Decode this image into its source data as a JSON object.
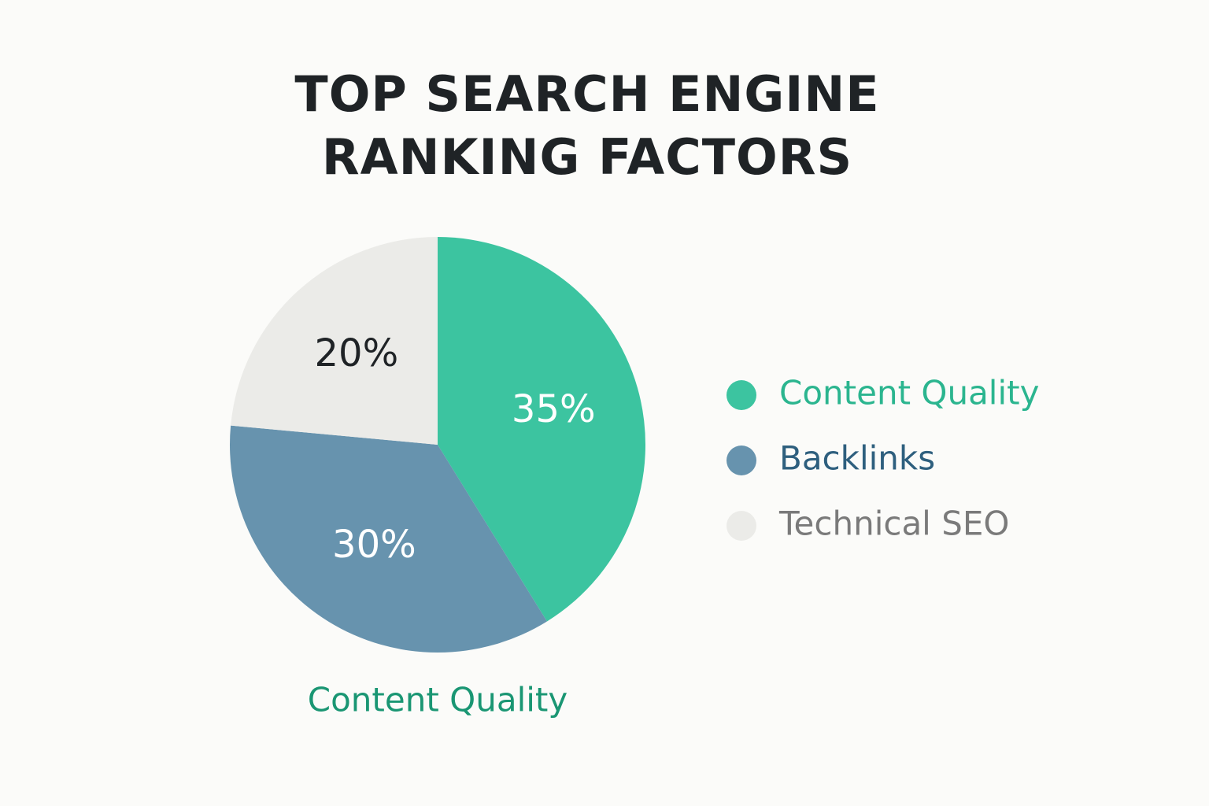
{
  "chart_data": {
    "type": "pie",
    "title": "TOP SEARCH ENGINE RANKING FACTORS",
    "categories": [
      "Content Quality",
      "Backlinks",
      "Technical SEO"
    ],
    "values": [
      35,
      30,
      20
    ],
    "value_labels": [
      "35%",
      "30%",
      "20%"
    ],
    "colors": [
      "#3cc4a0",
      "#6793ae",
      "#ebebe8"
    ],
    "label_colors": [
      "#2bb58f",
      "#2e5f7e",
      "#7a7a7a"
    ],
    "value_label_colors": [
      "#ffffff",
      "#ffffff",
      "#1f2326"
    ],
    "legend": "right",
    "annotation": "Content Quality",
    "annotation_color": "#1a9673"
  }
}
